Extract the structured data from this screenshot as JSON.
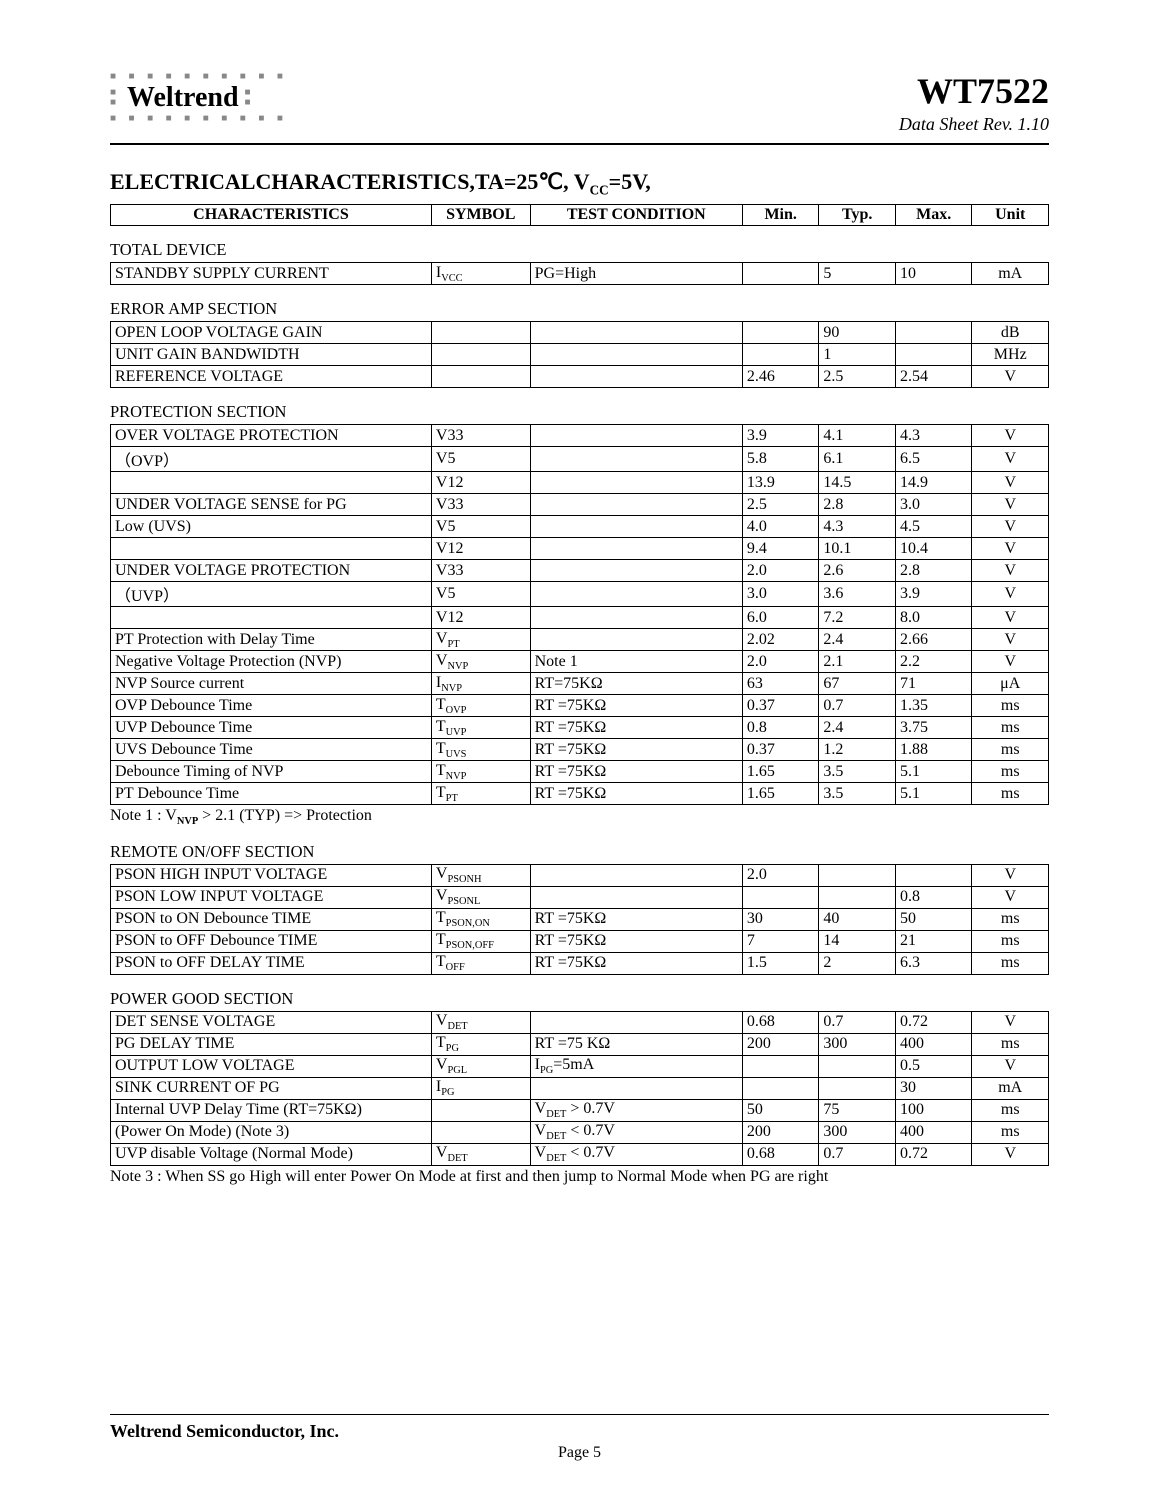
{
  "header": {
    "brand": "Weltrend",
    "part_number": "WT7522",
    "revision": "Data Sheet Rev. 1.10"
  },
  "title": "ELECTRICALCHARACTERISTICS,TA=25℃, V",
  "title_sub": "CC",
  "title_tail": "=5V,",
  "columns": {
    "characteristics": "CHARACTERISTICS",
    "symbol": "SYMBOL",
    "test_condition": "TEST CONDITION",
    "min": "Min.",
    "typ": "Typ.",
    "max": "Max.",
    "unit": "Unit"
  },
  "notes": {
    "note1_label": "Note 1 : V",
    "note1_sub": "NVP",
    "note1_tail": " > 2.1 (TYP) => Protection",
    "note3": "Note 3 : When SS go High will enter Power On Mode at first and then jump to Normal Mode when PG are right"
  },
  "footer": {
    "company": "Weltrend Semiconductor, Inc.",
    "page": "Page 5"
  },
  "sections": [
    {
      "label": "TOTAL DEVICE",
      "rows": [
        {
          "char": "STANDBY SUPPLY CURRENT",
          "sym": "I",
          "sub": "VCC",
          "cond": "PG=High",
          "min": "",
          "typ": "5",
          "max": "10",
          "unit": "mA"
        }
      ]
    },
    {
      "label": "ERROR AMP SECTION",
      "rows": [
        {
          "char": "OPEN LOOP VOLTAGE GAIN",
          "sym": "",
          "sub": "",
          "cond": "",
          "min": "",
          "typ": "90",
          "max": "",
          "unit": "dB"
        },
        {
          "char": "UNIT GAIN BANDWIDTH",
          "sym": "",
          "sub": "",
          "cond": "",
          "min": "",
          "typ": "1",
          "max": "",
          "unit": "MHz"
        },
        {
          "char": "REFERENCE VOLTAGE",
          "sym": "",
          "sub": "",
          "cond": "",
          "min": "2.46",
          "typ": "2.5",
          "max": "2.54",
          "unit": "V"
        }
      ]
    },
    {
      "label": "PROTECTION SECTION",
      "rows": [
        {
          "char": "OVER VOLTAGE PROTECTION",
          "sym": "V33",
          "sub": "",
          "cond": "",
          "min": "3.9",
          "typ": "4.1",
          "max": "4.3",
          "unit": "V"
        },
        {
          "char": "（OVP）",
          "sym": "V5",
          "sub": "",
          "cond": "",
          "min": "5.8",
          "typ": "6.1",
          "max": "6.5",
          "unit": "V"
        },
        {
          "char": "",
          "sym": "V12",
          "sub": "",
          "cond": "",
          "min": "13.9",
          "typ": "14.5",
          "max": "14.9",
          "unit": "V"
        },
        {
          "char": "UNDER VOLTAGE SENSE for PG",
          "sym": "V33",
          "sub": "",
          "cond": "",
          "min": "2.5",
          "typ": "2.8",
          "max": "3.0",
          "unit": "V"
        },
        {
          "char": "Low (UVS)",
          "sym": "V5",
          "sub": "",
          "cond": "",
          "min": "4.0",
          "typ": "4.3",
          "max": "4.5",
          "unit": "V"
        },
        {
          "char": "",
          "sym": "V12",
          "sub": "",
          "cond": "",
          "min": "9.4",
          "typ": "10.1",
          "max": "10.4",
          "unit": "V"
        },
        {
          "char": "UNDER VOLTAGE PROTECTION",
          "sym": "V33",
          "sub": "",
          "cond": "",
          "min": "2.0",
          "typ": "2.6",
          "max": "2.8",
          "unit": "V"
        },
        {
          "char": "（UVP）",
          "sym": "V5",
          "sub": "",
          "cond": "",
          "min": "3.0",
          "typ": "3.6",
          "max": "3.9",
          "unit": "V"
        },
        {
          "char": "",
          "sym": "V12",
          "sub": "",
          "cond": "",
          "min": "6.0",
          "typ": "7.2",
          "max": "8.0",
          "unit": "V"
        },
        {
          "char": "PT Protection with Delay Time",
          "sym": "V",
          "sub": "PT",
          "cond": "",
          "min": "2.02",
          "typ": "2.4",
          "max": "2.66",
          "unit": "V"
        },
        {
          "char": "Negative Voltage Protection (NVP)",
          "sym": "V",
          "sub": "NVP",
          "cond": "Note 1",
          "min": "2.0",
          "typ": "2.1",
          "max": "2.2",
          "unit": "V"
        },
        {
          "char": "NVP Source current",
          "sym": "I",
          "sub": "NVP",
          "cond": "RT=75KΩ",
          "min": "63",
          "typ": "67",
          "max": "71",
          "unit": "μA"
        },
        {
          "char": "OVP Debounce Time",
          "sym": "T",
          "sub": "OVP",
          "cond": "RT =75KΩ",
          "min": "0.37",
          "typ": "0.7",
          "max": "1.35",
          "unit": "ms"
        },
        {
          "char": "UVP Debounce Time",
          "sym": "T",
          "sub": "UVP",
          "cond": "RT =75KΩ",
          "min": "0.8",
          "typ": "2.4",
          "max": "3.75",
          "unit": "ms"
        },
        {
          "char": "UVS Debounce Time",
          "sym": "T",
          "sub": "UVS",
          "cond": "RT =75KΩ",
          "min": "0.37",
          "typ": "1.2",
          "max": "1.88",
          "unit": "ms"
        },
        {
          "char": "Debounce Timing of NVP",
          "sym": "T",
          "sub": "NVP",
          "cond": "RT =75KΩ",
          "min": "1.65",
          "typ": "3.5",
          "max": "5.1",
          "unit": "ms"
        },
        {
          "char": "PT Debounce Time",
          "sym": "T",
          "sub": "PT",
          "cond": "RT =75KΩ",
          "min": "1.65",
          "typ": "3.5",
          "max": "5.1",
          "unit": "ms"
        }
      ]
    },
    {
      "label": "REMOTE ON/OFF SECTION",
      "rows": [
        {
          "char": "PSON HIGH INPUT VOLTAGE",
          "sym": "V",
          "sub": "PSONH",
          "cond": "",
          "min": "2.0",
          "typ": "",
          "max": "",
          "unit": "V"
        },
        {
          "char": "PSON LOW INPUT VOLTAGE",
          "sym": "V",
          "sub": "PSONL",
          "cond": "",
          "min": "",
          "typ": "",
          "max": "0.8",
          "unit": "V"
        },
        {
          "char": "PSON to ON Debounce TIME",
          "sym": "T",
          "sub": "PSON,ON",
          "cond": "RT =75KΩ",
          "min": "30",
          "typ": "40",
          "max": "50",
          "unit": "ms"
        },
        {
          "char": "PSON to OFF Debounce TIME",
          "sym": "T",
          "sub": "PSON,OFF",
          "cond": "RT =75KΩ",
          "min": "7",
          "typ": "14",
          "max": "21",
          "unit": "ms"
        },
        {
          "char": "PSON to OFF DELAY TIME",
          "sym": "T",
          "sub": "OFF",
          "cond": "RT =75KΩ",
          "min": "1.5",
          "typ": "2",
          "max": "6.3",
          "unit": "ms"
        }
      ]
    },
    {
      "label": "POWER GOOD SECTION",
      "rows": [
        {
          "char": "DET SENSE VOLTAGE",
          "sym": "V",
          "sub": "DET",
          "cond": "",
          "min": "0.68",
          "typ": "0.7",
          "max": "0.72",
          "unit": "V"
        },
        {
          "char": "PG DELAY TIME",
          "sym": "T",
          "sub": "PG",
          "cond": "RT =75 KΩ",
          "min": "200",
          "typ": "300",
          "max": "400",
          "unit": "ms"
        },
        {
          "char": "OUTPUT LOW VOLTAGE",
          "sym": "V",
          "sub": "PGL",
          "cond": "I<sub>PG</sub>=5mA",
          "cond_html": true,
          "min": "",
          "typ": "",
          "max": "0.5",
          "unit": "V"
        },
        {
          "char": "SINK CURRENT OF PG",
          "sym": "I",
          "sub": "PG",
          "cond": "",
          "min": "",
          "typ": "",
          "max": "30",
          "unit": "mA"
        },
        {
          "char": "Internal UVP Delay Time (RT=75KΩ)",
          "sym": "",
          "sub": "",
          "cond": "V<sub>DET</sub>  > 0.7V",
          "cond_html": true,
          "min": "50",
          "typ": "75",
          "max": "100",
          "unit": "ms"
        },
        {
          "char": "(Power On Mode) (Note 3)",
          "sym": "",
          "sub": "",
          "cond": "V<sub>DET</sub>  < 0.7V",
          "cond_html": true,
          "min": "200",
          "typ": "300",
          "max": "400",
          "unit": "ms"
        },
        {
          "char": "UVP disable Voltage (Normal Mode)",
          "sym": "V",
          "sub": "DET",
          "cond": "V<sub>DET</sub>  < 0.7V",
          "cond_html": true,
          "min": "0.68",
          "typ": "0.7",
          "max": "0.72",
          "unit": "V"
        }
      ]
    }
  ]
}
